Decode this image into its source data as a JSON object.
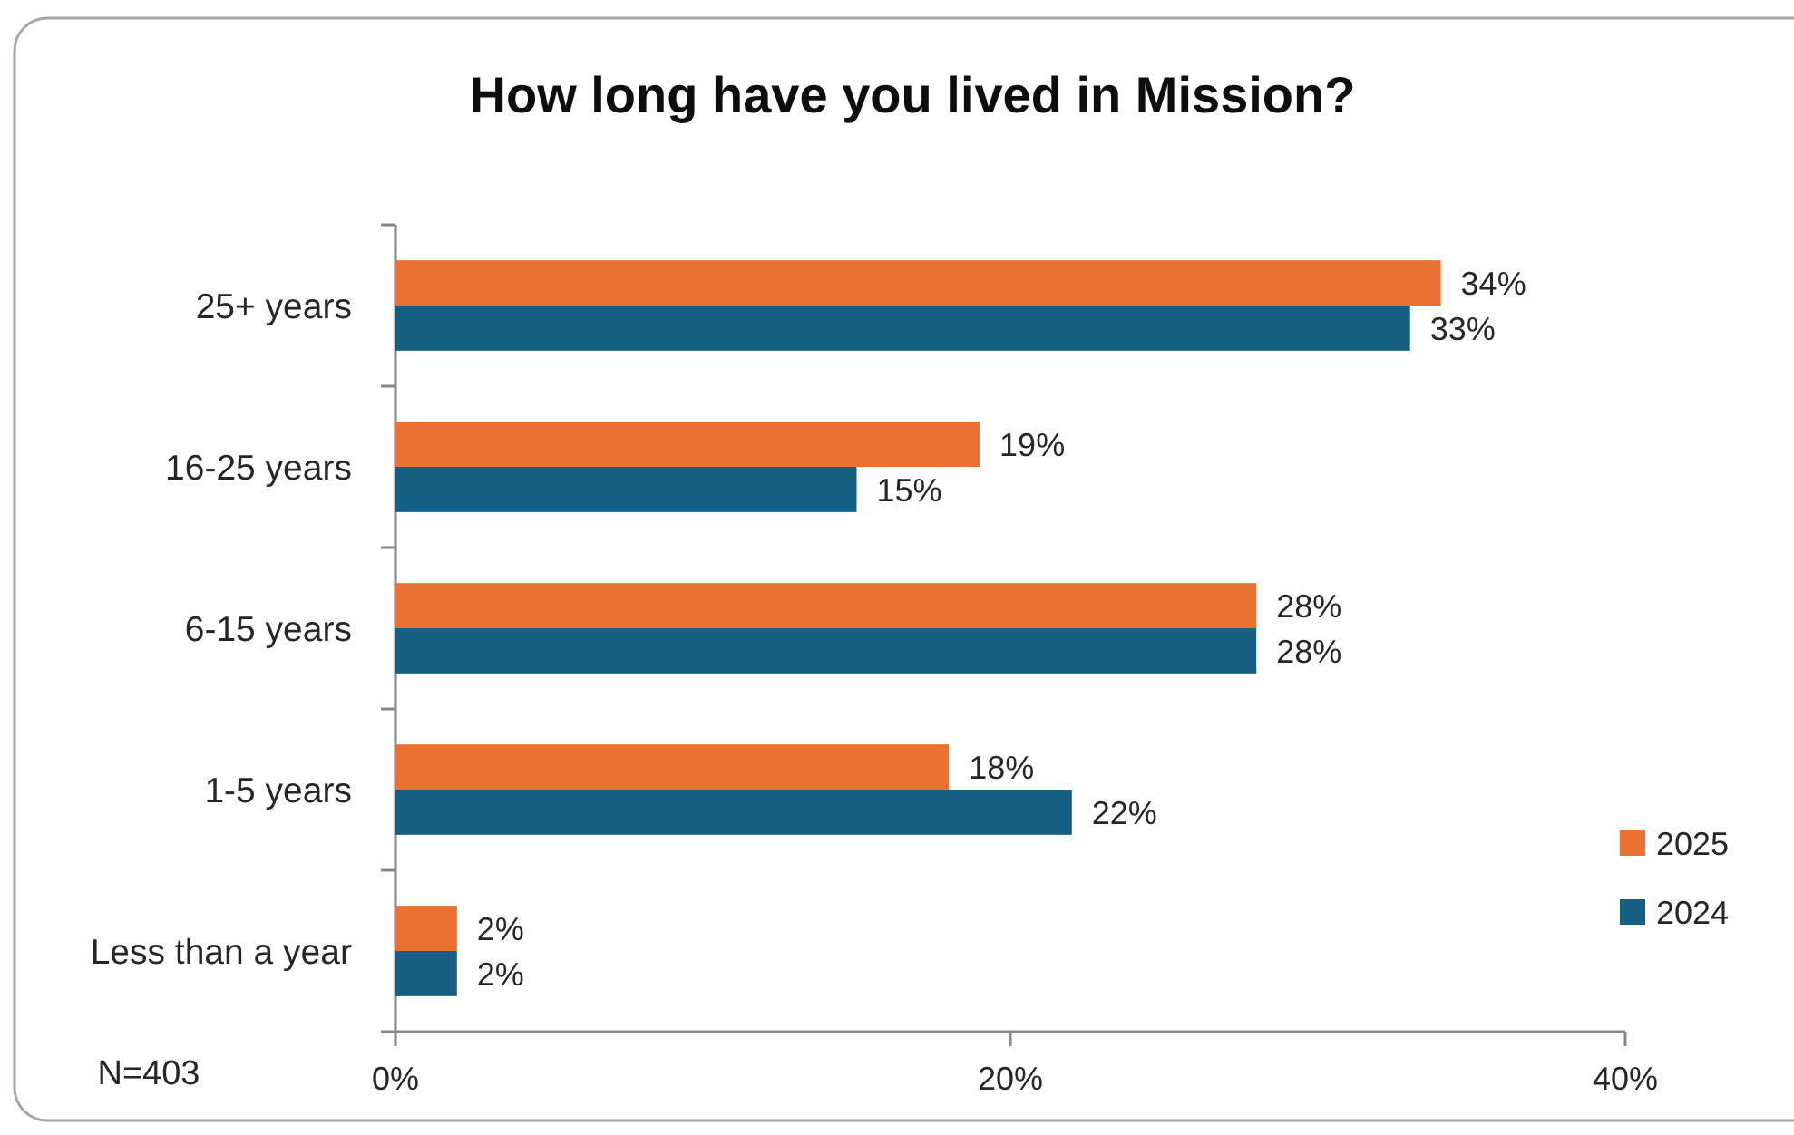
{
  "chart_data": {
    "type": "bar",
    "orientation": "horizontal",
    "title": "How long have you lived in Mission?",
    "categories": [
      "25+ years",
      "16-25 years",
      "6-15 years",
      "1-5 years",
      "Less than a year"
    ],
    "series": [
      {
        "name": "2025",
        "color": "#e97132",
        "values": [
          34,
          19,
          28,
          18,
          2
        ],
        "value_labels": [
          "34%",
          "19%",
          "28%",
          "18%",
          "2%"
        ]
      },
      {
        "name": "2024",
        "color": "#156082",
        "values": [
          33,
          15,
          28,
          22,
          2
        ],
        "value_labels": [
          "33%",
          "15%",
          "28%",
          "22%",
          "2%"
        ]
      }
    ],
    "xlim": [
      0,
      40
    ],
    "xticks": [
      {
        "value": 0,
        "label": "0%"
      },
      {
        "value": 20,
        "label": "20%"
      },
      {
        "value": 40,
        "label": "40%"
      }
    ],
    "legend": "bottom right",
    "annotations": [
      "N=403"
    ]
  }
}
